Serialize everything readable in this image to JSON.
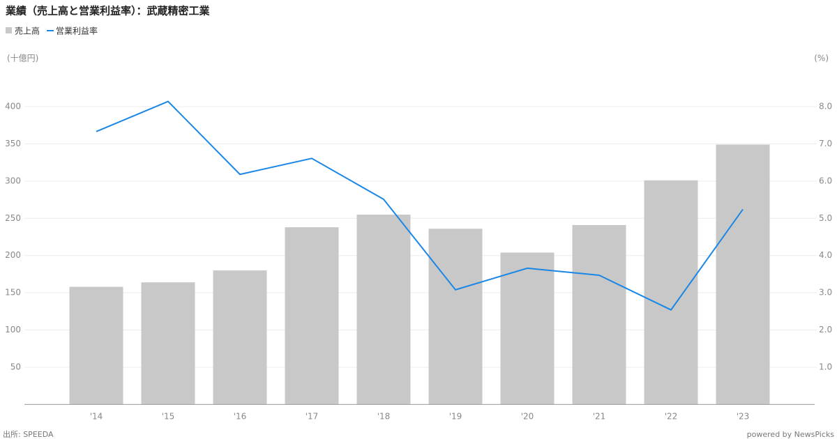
{
  "chart_data": {
    "type": "bar_line",
    "title": "業績（売上高と営業利益率）：武蔵精密工業",
    "y_unit": "(十億円)",
    "y2_unit": "(%)",
    "categories": [
      "'14",
      "'15",
      "'16",
      "'17",
      "'18",
      "'19",
      "'20",
      "'21",
      "'22",
      "'23"
    ],
    "series": [
      {
        "name": "売上高",
        "type": "bar",
        "color": "#c8c8c8",
        "values": [
          158,
          164,
          180,
          238,
          255,
          236,
          204,
          241,
          301,
          349
        ]
      },
      {
        "name": "営業利益率",
        "type": "line",
        "axis": "y2",
        "color": "#1a87e6",
        "values": [
          7.33,
          8.14,
          6.18,
          6.61,
          5.51,
          3.08,
          3.66,
          3.47,
          2.54,
          5.24
        ]
      }
    ],
    "ylim": [
      0,
      450
    ],
    "yticks": [
      50,
      100,
      150,
      200,
      250,
      300,
      350,
      400
    ],
    "y2lim": [
      0,
      9
    ],
    "y2ticks": [
      {
        "value": 1,
        "label": "1.0"
      },
      {
        "value": 2,
        "label": "2.0"
      },
      {
        "value": 3,
        "label": "3.0"
      },
      {
        "value": 4,
        "label": "4.0"
      },
      {
        "value": 5,
        "label": "5.0"
      },
      {
        "value": 6,
        "label": "6.0"
      },
      {
        "value": 7,
        "label": "7.0"
      },
      {
        "value": 8,
        "label": "8.0"
      }
    ],
    "grid": true,
    "source": "出所: SPEEDA",
    "credit": "powered by NewsPicks"
  }
}
